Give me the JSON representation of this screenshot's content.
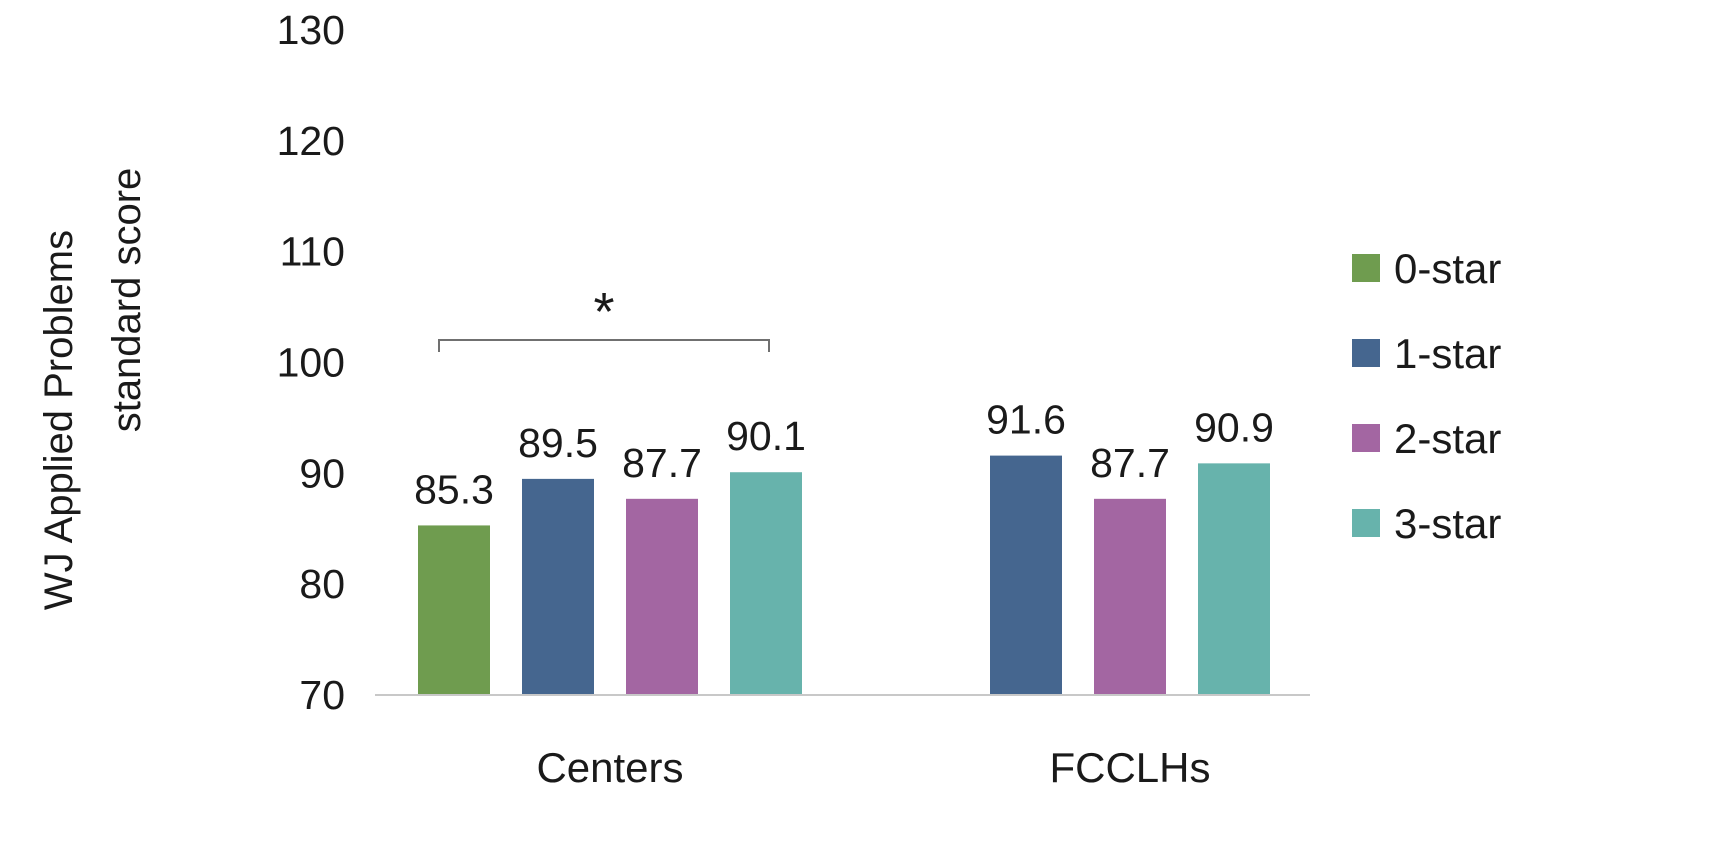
{
  "chart_data": {
    "type": "bar",
    "ylabel": [
      "WJ Applied Problems",
      "standard score"
    ],
    "xlabel": "",
    "ylim": [
      70,
      130
    ],
    "yticks": [
      70,
      80,
      90,
      100,
      110,
      120,
      130
    ],
    "grid": false,
    "legend_position": "right",
    "categories": [
      "Centers",
      "FCCLHs"
    ],
    "series": [
      {
        "name": "0-star",
        "color": "#6f9c4f",
        "values": [
          85.3,
          null
        ],
        "labels": [
          "85.3",
          ""
        ]
      },
      {
        "name": "1-star",
        "color": "#45668f",
        "values": [
          89.5,
          91.6
        ],
        "labels": [
          "89.5",
          "91.6"
        ]
      },
      {
        "name": "2-star",
        "color": "#a366a2",
        "values": [
          87.7,
          87.7
        ],
        "labels": [
          "87.7",
          "87.7"
        ]
      },
      {
        "name": "3-star",
        "color": "#67b3ac",
        "values": [
          90.1,
          90.9
        ],
        "labels": [
          "90.1",
          "90.9"
        ]
      }
    ],
    "annotations": [
      {
        "type": "significance-bracket",
        "category": "Centers",
        "from_series": "0-star",
        "to_series": "3-star",
        "text": "*"
      }
    ]
  }
}
